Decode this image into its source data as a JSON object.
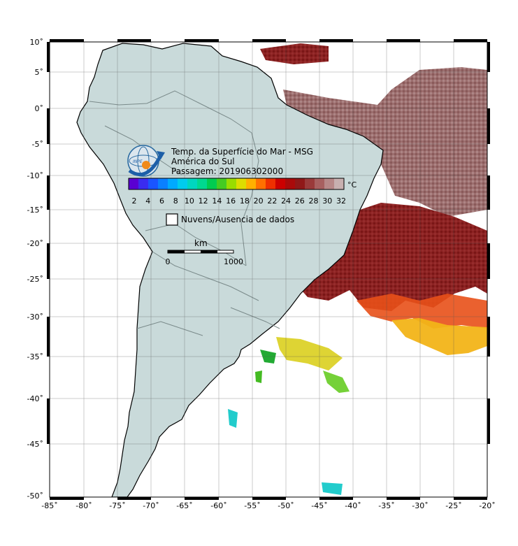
{
  "legend": {
    "title": "Temp. da Superfície do Mar - MSG",
    "region": "América do Sul",
    "pass": "Passagem: 201906302000",
    "unit": "°C",
    "cloud_label": "Nuvens/Ausencia de dados",
    "logo_text": "INPE"
  },
  "scale_bar": {
    "unit": "km",
    "start": "0",
    "end": "1000"
  },
  "colorbar": {
    "ticks": [
      "2",
      "4",
      "6",
      "8",
      "10",
      "12",
      "14",
      "16",
      "18",
      "20",
      "22",
      "24",
      "26",
      "28",
      "30",
      "32"
    ],
    "colors": [
      "#5a00d2",
      "#3a2cf0",
      "#1a55ff",
      "#0a80ff",
      "#00aaff",
      "#00ccee",
      "#00d6c0",
      "#00d890",
      "#00cc50",
      "#44cc22",
      "#99dd00",
      "#dddd00",
      "#ffb000",
      "#ff7000",
      "#ee3000",
      "#cc0000",
      "#aa0a0a",
      "#901818",
      "#9a3a3a",
      "#a86060",
      "#b88888",
      "#c8b0b0"
    ]
  },
  "axes": {
    "lon_labels": [
      "-85˚",
      "-80˚",
      "-75˚",
      "-70˚",
      "-65˚",
      "-60˚",
      "-55˚",
      "-50˚",
      "-45˚",
      "-40˚",
      "-35˚",
      "-30˚",
      "-25˚",
      "-20˚"
    ],
    "lat_labels": [
      "10˚",
      "5˚",
      "0˚",
      "-5˚",
      "-10˚",
      "-15˚",
      "-20˚",
      "-25˚",
      "-30˚",
      "-35˚",
      "-40˚",
      "-45˚",
      "-50˚"
    ]
  },
  "colors": {
    "land": "#c9dada",
    "ocean": "#ffffff",
    "sst_warm": "#8b1a1a",
    "sst_grey": "#9a6a6a"
  }
}
